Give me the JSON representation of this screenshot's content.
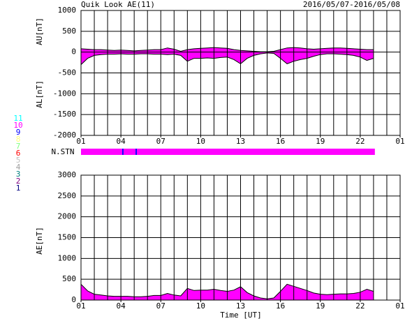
{
  "chart_data": [
    {
      "type": "area",
      "title": "Quik Look AE(11)",
      "subtitle": "2016/05/07-2016/05/08",
      "ylabels": [
        "AU[nT]",
        "AL[nT]"
      ],
      "x": [
        1,
        1.5,
        2,
        2.5,
        3,
        3.5,
        4,
        4.5,
        5,
        5.5,
        6,
        6.5,
        7,
        7.5,
        8,
        8.5,
        9,
        9.5,
        10,
        10.5,
        11,
        11.5,
        12,
        12.5,
        13,
        13.5,
        14,
        14.5,
        15,
        15.5,
        16,
        16.5,
        17,
        17.5,
        18,
        18.5,
        19,
        19.5,
        20,
        20.5,
        21,
        21.5,
        22,
        22.5,
        23
      ],
      "series": [
        {
          "color": "#ff00ff",
          "values": [
            80,
            70,
            60,
            60,
            50,
            40,
            50,
            40,
            30,
            40,
            50,
            60,
            60,
            100,
            70,
            20,
            60,
            80,
            90,
            100,
            110,
            100,
            90,
            60,
            40,
            30,
            20,
            10,
            10,
            20,
            60,
            100,
            110,
            100,
            80,
            70,
            80,
            90,
            100,
            100,
            90,
            80,
            70,
            60,
            60
          ]
        },
        {
          "color": "#ff00ff",
          "values": [
            -300,
            -150,
            -80,
            -60,
            -50,
            -50,
            -40,
            -50,
            -50,
            -40,
            -40,
            -50,
            -50,
            -60,
            -50,
            -80,
            -220,
            -150,
            -150,
            -140,
            -150,
            -130,
            -120,
            -180,
            -280,
            -150,
            -80,
            -40,
            -20,
            -30,
            -150,
            -280,
            -220,
            -180,
            -150,
            -100,
            -60,
            -40,
            -40,
            -50,
            -60,
            -80,
            -120,
            -200,
            -150
          ]
        }
      ],
      "xlim": [
        1,
        25
      ],
      "xticks": [
        {
          "value": 1,
          "label": "01"
        },
        {
          "value": 4,
          "label": "04"
        },
        {
          "value": 7,
          "label": "07"
        },
        10,
        13,
        16,
        19,
        22,
        {
          "value": 25,
          "label": "01"
        }
      ],
      "xgrid_step": 1,
      "ylim": [
        -2000,
        1000
      ],
      "yticks": [
        1000,
        500,
        0,
        -500,
        -1000,
        -1500,
        -2000
      ],
      "grid": true
    },
    {
      "type": "strip",
      "label": "N.STN",
      "bins": [
        1,
        4.1,
        4.2,
        5.1,
        5.2,
        23.1
      ],
      "values": [
        10,
        9,
        10,
        9,
        10
      ],
      "legend": {
        "values": [
          11,
          10,
          9,
          8,
          7,
          6,
          5,
          4,
          3,
          2,
          1
        ],
        "colors": [
          "#00ffff",
          "#ff00ff",
          "#0000ff",
          "#ffff80",
          "#80ff80",
          "#ff0000",
          "#c0c0c0",
          "#a0a0a0",
          "#008080",
          "#800080",
          "#000080"
        ]
      }
    },
    {
      "type": "area",
      "ylabel": "AE[nT]",
      "xlabel": "Time [UT]",
      "x": [
        1,
        1.5,
        2,
        2.5,
        3,
        3.5,
        4,
        4.5,
        5,
        5.5,
        6,
        6.5,
        7,
        7.5,
        8,
        8.5,
        9,
        9.5,
        10,
        10.5,
        11,
        11.5,
        12,
        12.5,
        13,
        13.5,
        14,
        14.5,
        15,
        15.5,
        16,
        16.5,
        17,
        17.5,
        18,
        18.5,
        19,
        19.5,
        20,
        20.5,
        21,
        21.5,
        22,
        22.5,
        23
      ],
      "series": [
        {
          "color": "#ff00ff",
          "values": [
            380,
            220,
            140,
            120,
            100,
            90,
            90,
            90,
            80,
            80,
            90,
            110,
            110,
            160,
            120,
            100,
            280,
            230,
            240,
            240,
            260,
            230,
            210,
            240,
            320,
            180,
            100,
            50,
            30,
            50,
            210,
            380,
            330,
            280,
            230,
            170,
            140,
            130,
            140,
            150,
            150,
            160,
            190,
            260,
            210
          ]
        }
      ],
      "xlim": [
        1,
        25
      ],
      "xticks": [
        {
          "value": 1,
          "label": "01"
        },
        {
          "value": 4,
          "label": "04"
        },
        {
          "value": 7,
          "label": "07"
        },
        10,
        13,
        16,
        19,
        22,
        {
          "value": 25,
          "label": "01"
        }
      ],
      "xgrid_step": 1,
      "ylim": [
        0,
        3000
      ],
      "yticks": [
        0,
        500,
        1000,
        1500,
        2000,
        2500,
        3000
      ],
      "grid": true
    }
  ]
}
